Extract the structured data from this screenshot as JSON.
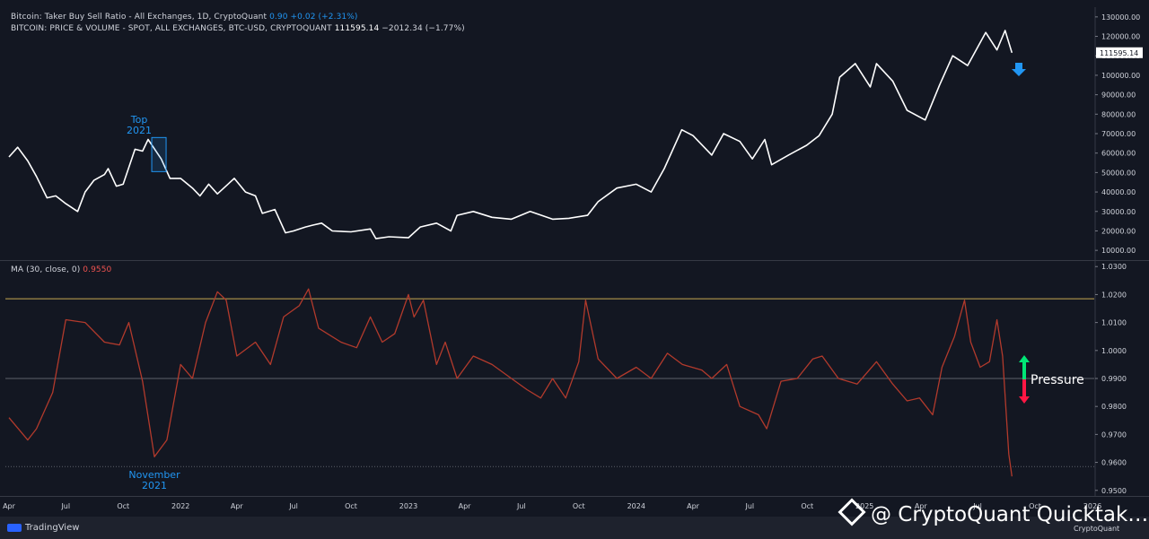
{
  "legend": {
    "price": {
      "title": "Bitcoin: Taker Buy Sell Ratio - All Exchanges, 1D, CryptoQuant",
      "value": "0.90",
      "change": "+0.02 (+2.31%)"
    },
    "series": {
      "title": "BITCOIN: PRICE & VOLUME - SPOT, ALL EXCHANGES, BTC-USD, CRYPTOQUANT",
      "value": "111595.14",
      "change": "−2012.34 (−1.77%)"
    },
    "ma": {
      "title": "MA (30, close, 0)",
      "value": "0.9550"
    }
  },
  "footer": {
    "brand": "TradingView",
    "watermark": "@ CryptoQuant Quicktak…",
    "watermark_small": "CryptoQuant"
  },
  "colors": {
    "background": "#131722",
    "price_line": "#ffffff",
    "ratio_line": "#b23a2c",
    "upper_line": "#c8a951",
    "price_label_bg": "#ffffff",
    "annotation": "#2196f3",
    "arrow_up": "#00e676",
    "arrow_down": "#ff1744"
  },
  "chart_data": [
    {
      "type": "line",
      "series": [
        {
          "name": "BITCOIN: PRICE & VOLUME - SPOT, ALL EXCHANGES, BTC-USD, CRYPTOQUANT",
          "x": [
            "2021-04-01",
            "2021-04-15",
            "2021-05-01",
            "2021-05-15",
            "2021-06-01",
            "2021-06-15",
            "2021-07-01",
            "2021-07-20",
            "2021-08-01",
            "2021-08-15",
            "2021-09-01",
            "2021-09-07",
            "2021-09-20",
            "2021-10-01",
            "2021-10-20",
            "2021-11-01",
            "2021-11-10",
            "2021-12-01",
            "2021-12-15",
            "2022-01-01",
            "2022-01-20",
            "2022-02-01",
            "2022-02-15",
            "2022-03-01",
            "2022-03-28",
            "2022-04-15",
            "2022-05-01",
            "2022-05-12",
            "2022-06-01",
            "2022-06-18",
            "2022-07-01",
            "2022-07-20",
            "2022-08-01",
            "2022-08-15",
            "2022-09-01",
            "2022-10-01",
            "2022-11-01",
            "2022-11-10",
            "2022-12-01",
            "2023-01-01",
            "2023-01-20",
            "2023-02-15",
            "2023-03-10",
            "2023-03-20",
            "2023-04-15",
            "2023-05-15",
            "2023-06-15",
            "2023-07-15",
            "2023-08-20",
            "2023-09-15",
            "2023-10-15",
            "2023-11-01",
            "2023-12-01",
            "2024-01-01",
            "2024-01-25",
            "2024-02-15",
            "2024-03-14",
            "2024-04-01",
            "2024-05-01",
            "2024-05-20",
            "2024-06-15",
            "2024-07-05",
            "2024-07-25",
            "2024-08-05",
            "2024-09-01",
            "2024-09-30",
            "2024-10-20",
            "2024-11-10",
            "2024-11-22",
            "2024-12-17",
            "2025-01-10",
            "2025-01-20",
            "2025-02-15",
            "2025-03-10",
            "2025-04-08",
            "2025-05-01",
            "2025-05-22",
            "2025-06-15",
            "2025-07-14",
            "2025-08-01",
            "2025-08-14",
            "2025-08-25"
          ],
          "values": [
            58000,
            63000,
            56000,
            48000,
            37000,
            38000,
            34000,
            30000,
            40000,
            46000,
            49000,
            52000,
            43000,
            44000,
            62000,
            61000,
            67000,
            57000,
            47000,
            47000,
            42000,
            38000,
            44000,
            39000,
            47000,
            40000,
            38000,
            29000,
            31000,
            19000,
            20000,
            22000,
            23000,
            24000,
            20000,
            19500,
            21000,
            16000,
            17000,
            16500,
            22000,
            24000,
            20000,
            28000,
            30000,
            27000,
            26000,
            30000,
            26000,
            26500,
            28000,
            35000,
            42000,
            44000,
            40000,
            52000,
            72000,
            69000,
            59000,
            70000,
            66000,
            57000,
            67000,
            54000,
            59000,
            64000,
            69000,
            80000,
            99000,
            106000,
            94000,
            106000,
            97000,
            82000,
            77000,
            95000,
            110000,
            105000,
            122000,
            113000,
            123000,
            111595.14
          ],
          "ylim": [
            5000,
            135000
          ],
          "ticks": [
            "130000.00",
            "120000.00",
            "110000.00",
            "100000.00",
            "90000.00",
            "80000.00",
            "70000.00",
            "60000.00",
            "50000.00",
            "40000.00",
            "30000.00",
            "20000.00",
            "10000.00"
          ],
          "last_label": "111595.14"
        }
      ],
      "annotations": [
        {
          "text_1": "Top",
          "text_2": "2021",
          "x": "2021-11-10"
        }
      ]
    },
    {
      "type": "line",
      "series": [
        {
          "name": "MA (30, close, 0)",
          "x": [
            "2021-04-01",
            "2021-05-01",
            "2021-05-15",
            "2021-06-10",
            "2021-07-01",
            "2021-08-01",
            "2021-09-01",
            "2021-09-25",
            "2021-10-10",
            "2021-11-01",
            "2021-11-20",
            "2021-12-10",
            "2022-01-01",
            "2022-01-20",
            "2022-02-10",
            "2022-03-01",
            "2022-03-15",
            "2022-04-01",
            "2022-05-01",
            "2022-05-25",
            "2022-06-15",
            "2022-07-10",
            "2022-07-25",
            "2022-08-10",
            "2022-09-15",
            "2022-10-10",
            "2022-11-01",
            "2022-11-20",
            "2022-12-10",
            "2023-01-01",
            "2023-01-10",
            "2023-01-25",
            "2023-02-15",
            "2023-03-01",
            "2023-03-20",
            "2023-04-15",
            "2023-05-15",
            "2023-06-15",
            "2023-07-10",
            "2023-08-01",
            "2023-08-20",
            "2023-09-10",
            "2023-10-01",
            "2023-10-12",
            "2023-11-01",
            "2023-12-01",
            "2024-01-01",
            "2024-01-25",
            "2024-02-20",
            "2024-03-15",
            "2024-04-15",
            "2024-05-01",
            "2024-05-25",
            "2024-06-15",
            "2024-07-15",
            "2024-07-28",
            "2024-08-20",
            "2024-09-15",
            "2024-10-10",
            "2024-10-25",
            "2024-11-20",
            "2024-12-20",
            "2025-01-20",
            "2025-02-15",
            "2025-03-10",
            "2025-03-30",
            "2025-04-20",
            "2025-05-05",
            "2025-05-25",
            "2025-06-10",
            "2025-06-20",
            "2025-07-05",
            "2025-07-20",
            "2025-08-01",
            "2025-08-10",
            "2025-08-20",
            "2025-08-25"
          ],
          "values": [
            0.976,
            0.968,
            0.972,
            0.985,
            1.011,
            1.01,
            1.003,
            1.002,
            1.01,
            0.989,
            0.962,
            0.968,
            0.995,
            0.99,
            1.01,
            1.021,
            1.018,
            0.998,
            1.003,
            0.995,
            1.012,
            1.016,
            1.022,
            1.008,
            1.003,
            1.001,
            1.012,
            1.003,
            1.006,
            1.02,
            1.012,
            1.018,
            0.995,
            1.003,
            0.99,
            0.998,
            0.995,
            0.99,
            0.986,
            0.983,
            0.99,
            0.983,
            0.996,
            1.018,
            0.997,
            0.99,
            0.994,
            0.99,
            0.999,
            0.995,
            0.993,
            0.99,
            0.995,
            0.98,
            0.977,
            0.972,
            0.989,
            0.99,
            0.997,
            0.998,
            0.99,
            0.988,
            0.996,
            0.988,
            0.982,
            0.983,
            0.977,
            0.994,
            1.005,
            1.018,
            1.003,
            0.994,
            0.996,
            1.011,
            0.998,
            0.963,
            0.955
          ],
          "ylim": [
            0.948,
            1.032
          ],
          "ticks": [
            "1.0300",
            "1.0200",
            "1.0100",
            "1.0000",
            "0.9900",
            "0.9800",
            "0.9700",
            "0.9600",
            "0.9500"
          ],
          "reference_lines": [
            1.0185,
            0.99,
            0.9585
          ]
        }
      ],
      "annotations": [
        {
          "text_1": "November",
          "text_2": "2021",
          "x": "2021-11-20"
        },
        {
          "text": "Pressure"
        }
      ]
    }
  ],
  "x_axis": {
    "labels": [
      {
        "text": "Apr",
        "date": "2021-04-01"
      },
      {
        "text": "Jul",
        "date": "2021-07-01"
      },
      {
        "text": "Oct",
        "date": "2021-10-01"
      },
      {
        "text": "2022",
        "date": "2022-01-01"
      },
      {
        "text": "Apr",
        "date": "2022-04-01"
      },
      {
        "text": "Jul",
        "date": "2022-07-01"
      },
      {
        "text": "Oct",
        "date": "2022-10-01"
      },
      {
        "text": "2023",
        "date": "2023-01-01"
      },
      {
        "text": "Apr",
        "date": "2023-04-01"
      },
      {
        "text": "Jul",
        "date": "2023-07-01"
      },
      {
        "text": "Oct",
        "date": "2023-10-01"
      },
      {
        "text": "2024",
        "date": "2024-01-01"
      },
      {
        "text": "Apr",
        "date": "2024-04-01"
      },
      {
        "text": "Jul",
        "date": "2024-07-01"
      },
      {
        "text": "Oct",
        "date": "2024-10-01"
      },
      {
        "text": "2025",
        "date": "2025-01-01"
      },
      {
        "text": "Apr",
        "date": "2025-04-01"
      },
      {
        "text": "Jul",
        "date": "2025-07-01"
      },
      {
        "text": "Oct",
        "date": "2025-10-01"
      },
      {
        "text": "2026",
        "date": "2026-01-01"
      }
    ]
  }
}
